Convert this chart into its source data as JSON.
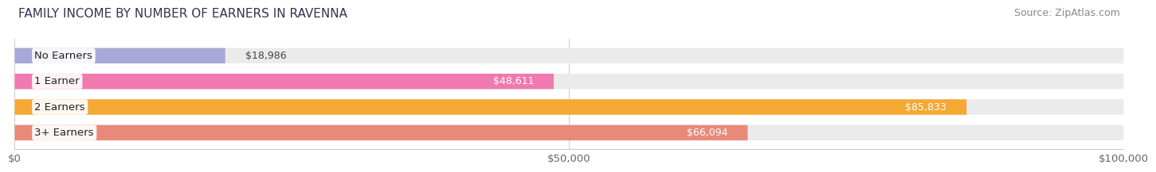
{
  "title": "FAMILY INCOME BY NUMBER OF EARNERS IN RAVENNA",
  "source": "Source: ZipAtlas.com",
  "categories": [
    "No Earners",
    "1 Earner",
    "2 Earners",
    "3+ Earners"
  ],
  "values": [
    18986,
    48611,
    85833,
    66094
  ],
  "bar_colors": [
    "#a8a8d8",
    "#f07ab0",
    "#f5a833",
    "#e8897a"
  ],
  "label_colors": [
    "#444444",
    "#444444",
    "#ffffff",
    "#ffffff"
  ],
  "xlim": [
    0,
    100000
  ],
  "xticks": [
    0,
    50000,
    100000
  ],
  "xticklabels": [
    "$0",
    "$50,000",
    "$100,000"
  ],
  "bg_bar_color": "#ebebeb",
  "title_fontsize": 11,
  "source_fontsize": 9,
  "label_fontsize": 9.5,
  "value_fontsize": 9
}
